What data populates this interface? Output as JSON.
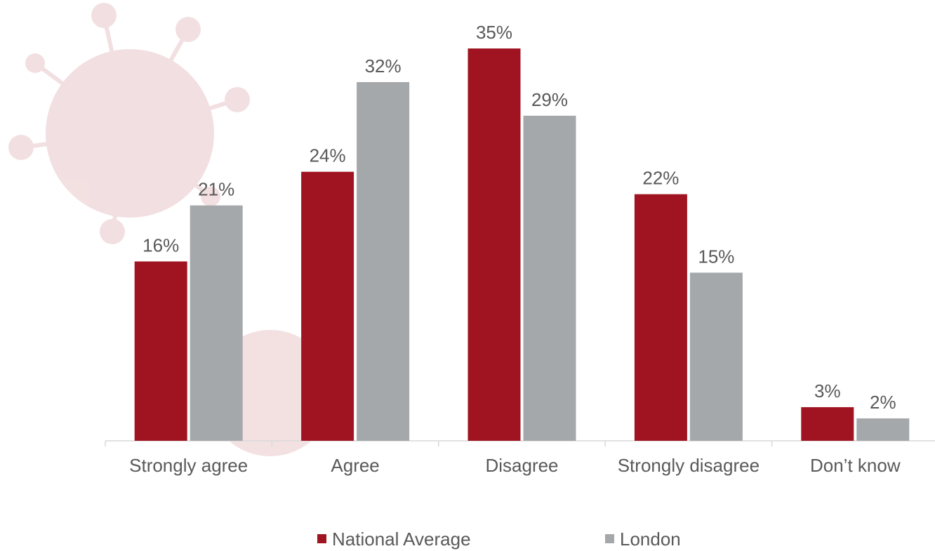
{
  "chart_data": {
    "type": "bar",
    "categories": [
      "Strongly agree",
      "Agree",
      "Disagree",
      "Strongly disagree",
      "Don’t know"
    ],
    "series": [
      {
        "name": "National Average",
        "color": "#a01422",
        "values": [
          16,
          24,
          35,
          22,
          3
        ],
        "value_labels": [
          "16%",
          "24%",
          "35%",
          "22%",
          "3%"
        ]
      },
      {
        "name": "London",
        "color": "#a5a8ab",
        "values": [
          21,
          32,
          29,
          15,
          2
        ],
        "value_labels": [
          "21%",
          "32%",
          "29%",
          "15%",
          "2%"
        ]
      }
    ],
    "legend": "bottom"
  }
}
